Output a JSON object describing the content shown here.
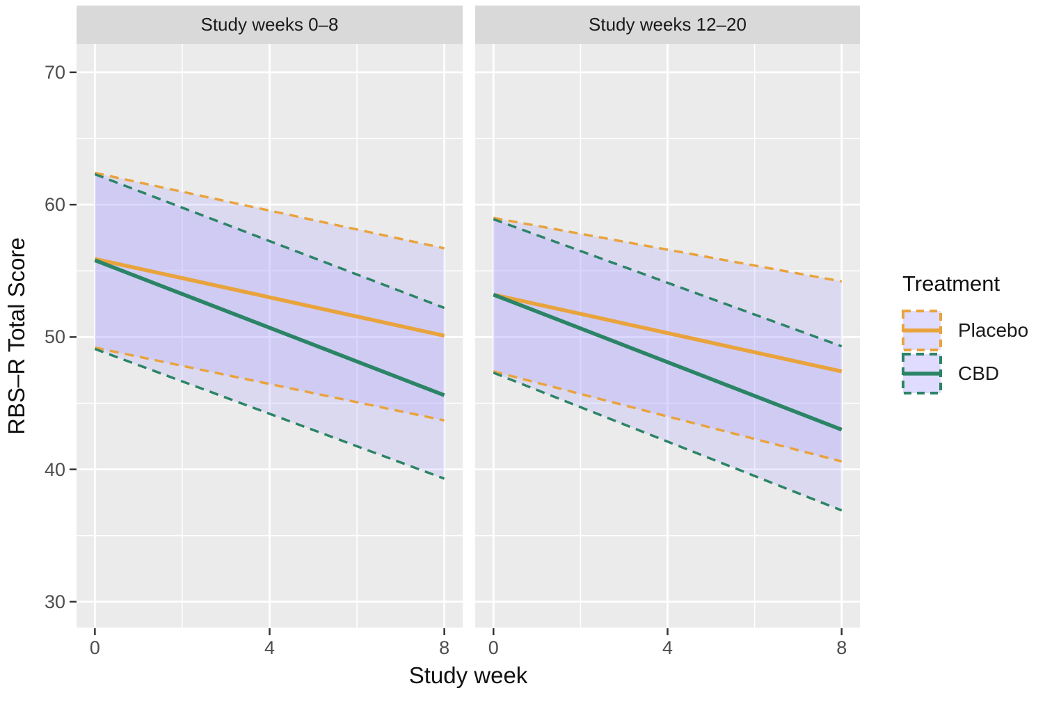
{
  "chart_data": {
    "type": "line",
    "title": "",
    "xlabel": "Study week",
    "ylabel": "RBS–R Total Score",
    "x_ticks": [
      0,
      4,
      8
    ],
    "x_minor_ticks": [
      2,
      6
    ],
    "y_ticks": [
      30,
      40,
      50,
      60,
      70
    ],
    "y_minor_ticks": [
      35,
      45,
      55,
      65
    ],
    "xlim": [
      -0.42,
      8.42
    ],
    "ylim": [
      28.05,
      72.15
    ],
    "grid": "on",
    "legend_position": "right",
    "panel_bg": "#EBEBEB",
    "strip_bg": "#D9D9D9",
    "grid_major_color": "#FFFFFF",
    "grid_minor_color": "#FFFFFF",
    "tick_mark_color": "#333333",
    "tick_label_color": "#4D4D4D",
    "band_fill": "rgba(165,155,255,0.22)",
    "legend_key_fill": "rgba(165,155,255,0.35)",
    "facets": [
      {
        "label": "Study weeks 0–8",
        "series": [
          {
            "name": "Placebo",
            "color": "#E9A33C",
            "x": [
              0,
              8
            ],
            "mean": [
              55.9,
              50.1
            ],
            "ci_upper": [
              62.4,
              56.7
            ],
            "ci_lower": [
              49.2,
              43.7
            ]
          },
          {
            "name": "CBD",
            "color": "#2B8466",
            "x": [
              0,
              8
            ],
            "mean": [
              55.8,
              45.6
            ],
            "ci_upper": [
              62.3,
              52.2
            ],
            "ci_lower": [
              49.1,
              39.3
            ]
          }
        ]
      },
      {
        "label": "Study weeks 12–20",
        "series": [
          {
            "name": "Placebo",
            "color": "#E9A33C",
            "x": [
              0,
              8
            ],
            "mean": [
              53.2,
              47.4
            ],
            "ci_upper": [
              59.0,
              54.2
            ],
            "ci_lower": [
              47.4,
              40.6
            ]
          },
          {
            "name": "CBD",
            "color": "#2B8466",
            "x": [
              0,
              8
            ],
            "mean": [
              53.2,
              43.0
            ],
            "ci_upper": [
              58.9,
              49.3
            ],
            "ci_lower": [
              47.3,
              36.9
            ]
          }
        ]
      }
    ],
    "legend": {
      "title": "Treatment",
      "entries": [
        {
          "label": "Placebo",
          "color": "#E9A33C"
        },
        {
          "label": "CBD",
          "color": "#2B8466"
        }
      ]
    }
  }
}
